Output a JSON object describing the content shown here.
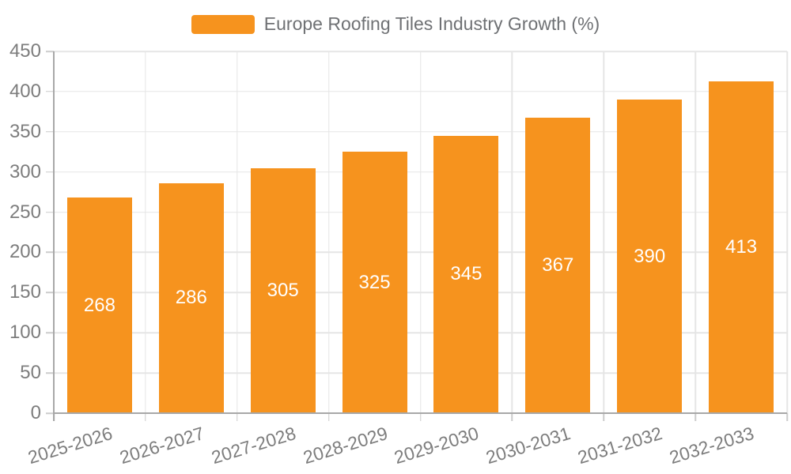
{
  "legend": {
    "label": "Europe Roofing Tiles Industry Growth (%)"
  },
  "chart_data": {
    "type": "bar",
    "title": "Europe Roofing Tiles Industry Growth (%)",
    "categories": [
      "2025-2026",
      "2026-2027",
      "2027-2028",
      "2028-2029",
      "2029-2030",
      "2030-2031",
      "2031-2032",
      "2032-2033"
    ],
    "values": [
      268,
      286,
      305,
      325,
      345,
      367,
      390,
      413
    ],
    "xlabel": "",
    "ylabel": "",
    "ylim": [
      0,
      450
    ],
    "yticks": [
      0,
      50,
      100,
      150,
      200,
      250,
      300,
      350,
      400,
      450
    ],
    "grid": "both",
    "legend_position": "top-center",
    "bar_color": "#F6931E",
    "value_label_color": "#FFFFFF",
    "axis_text_color": "#7D7D7D",
    "gridline_color": "#E5E5E5",
    "axis_line_color": "#A8A8A8"
  }
}
